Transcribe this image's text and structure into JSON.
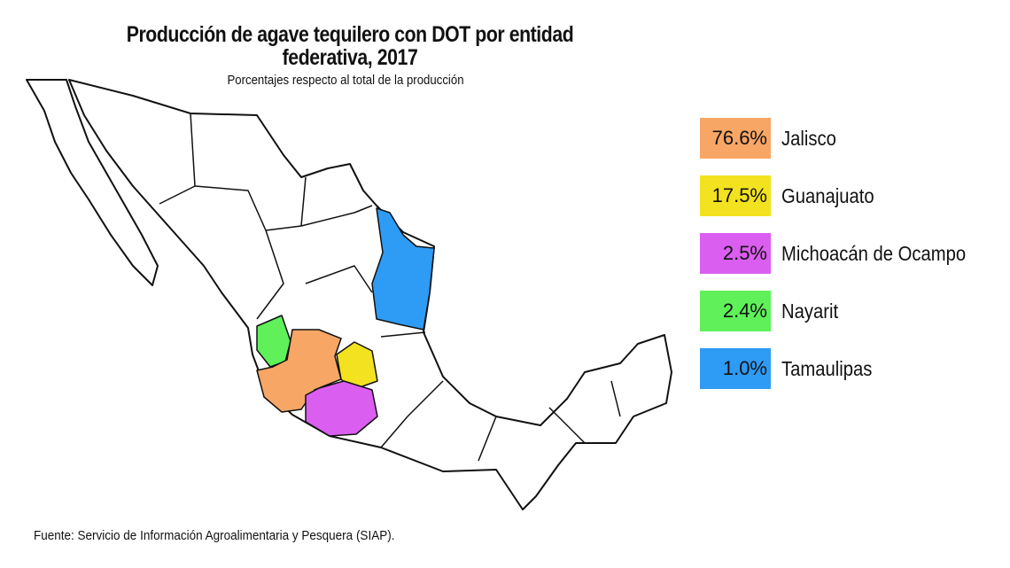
{
  "title": "Producción de agave tequilero con DOT por entidad federativa, 2017",
  "subtitle": "Porcentajes respecto al total de la producción",
  "legend": [
    {
      "value": "76.6%",
      "state": "Jalisco",
      "color": "#f7a665"
    },
    {
      "value": "17.5%",
      "state": "Guanajuato",
      "color": "#f2e21f"
    },
    {
      "value": "2.5%",
      "state": "Michoacán de Ocampo",
      "color": "#da5ef0"
    },
    {
      "value": "2.4%",
      "state": "Nayarit",
      "color": "#5ff05a"
    },
    {
      "value": "1.0%",
      "state": "Tamaulipas",
      "color": "#2e9bf5"
    }
  ],
  "source": "Fuente: Servicio de Información Agroalimentaria y Pesquera (SIAP)."
}
